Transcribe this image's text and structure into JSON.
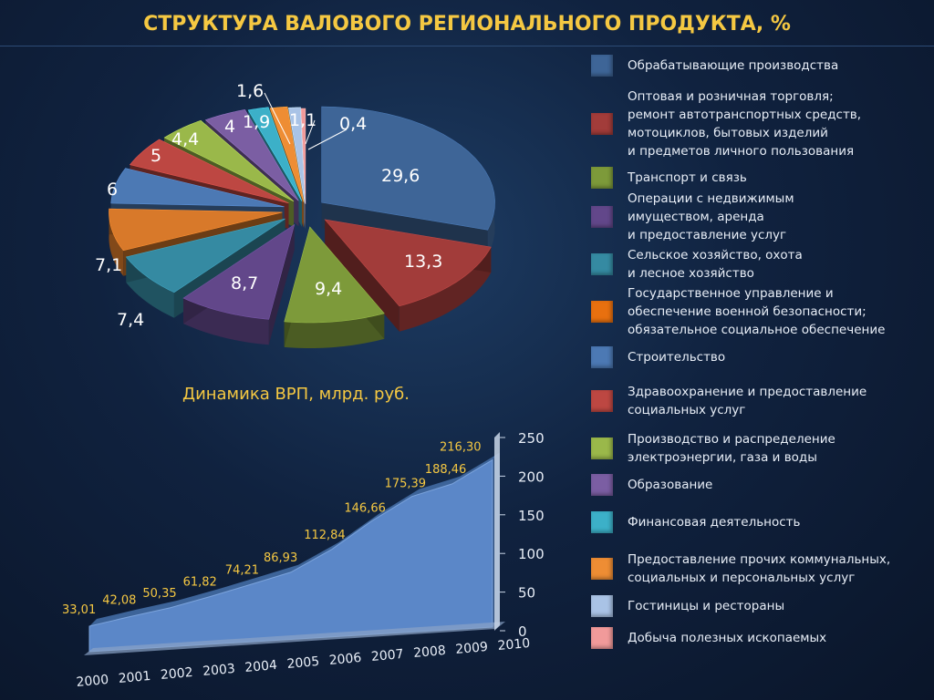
{
  "title": "СТРУКТУРА ВАЛОВОГО РЕГИОНАЛЬНОГО ПРОДУКТА, %",
  "colors": {
    "accent": "#f5c842",
    "area": "#5b87c8"
  },
  "chart_data": [
    {
      "type": "pie",
      "values": [
        29.6,
        13.3,
        9.4,
        8.7,
        7.4,
        7.1,
        6,
        5,
        4.4,
        4,
        1.9,
        1.6,
        1.1,
        0.4
      ],
      "labels": [
        "29,6",
        "13,3",
        "9,4",
        "8,7",
        "7,4",
        "7,1",
        "6",
        "5",
        "4,4",
        "4",
        "1,9",
        "1,6",
        "1,1",
        "0,4"
      ],
      "colors": [
        "#3e6597",
        "#a23c3a",
        "#7d9a3a",
        "#62478a",
        "#358aa2",
        "#d8792a",
        "#4c79b4",
        "#bd4742",
        "#9ab84a",
        "#7b5ea3",
        "#3cb0c8",
        "#ee8d34",
        "#a9c3e6",
        "#f19a9a"
      ],
      "legend": [
        "Обрабатывающие производства",
        "Оптовая и розничная торговля;\nремонт автотранспортных средств,\nмотоциклов, бытовых изделий\nи предметов личного пользования",
        "Транспорт и связь",
        "Операции с недвижимым\nимуществом, аренда\nи предоставление услуг",
        "Сельское хозяйство, охота\nи лесное хозяйство",
        "Государственное управление и\nобеспечение военной безопасности;\nобязательное социальное обеспечение",
        "Строительство",
        "Здравоохранение и предоставление\nсоциальных услуг",
        "Производство и распределение\nэлектроэнергии, газа и воды",
        "Образование",
        "Финансовая деятельность",
        "Предоставление прочих коммунальных,\nсоциальных и персональных услуг",
        "Гостиницы и рестораны",
        "Добыча полезных ископаемых"
      ],
      "legend_colors": [
        "#3e6597",
        "#a23c3a",
        "#7d9a3a",
        "#62478a",
        "#358aa2",
        "#e8700f",
        "#4c79b4",
        "#bd4742",
        "#9ab84a",
        "#7b5ea3",
        "#3cb0c8",
        "#ee8d34",
        "#a9c3e6",
        "#f19a9a"
      ]
    },
    {
      "type": "area",
      "title": "Динамика ВРП, млрд. руб.",
      "x": [
        "2000",
        "2001",
        "2002",
        "2003",
        "2004",
        "2005",
        "2006",
        "2007",
        "2008",
        "2009",
        "2010"
      ],
      "values": [
        33.01,
        42.08,
        50.35,
        61.82,
        74.21,
        86.93,
        112.84,
        146.66,
        175.39,
        188.46,
        216.3
      ],
      "value_labels": [
        "33,01",
        "42,08",
        "50,35",
        "61,82",
        "74,21",
        "86,93",
        "112,84",
        "146,66",
        "175,39",
        "188,46",
        "216,30"
      ],
      "ylim": [
        0,
        250
      ],
      "yticks": [
        "0",
        "50",
        "100",
        "150",
        "200",
        "250"
      ]
    }
  ]
}
